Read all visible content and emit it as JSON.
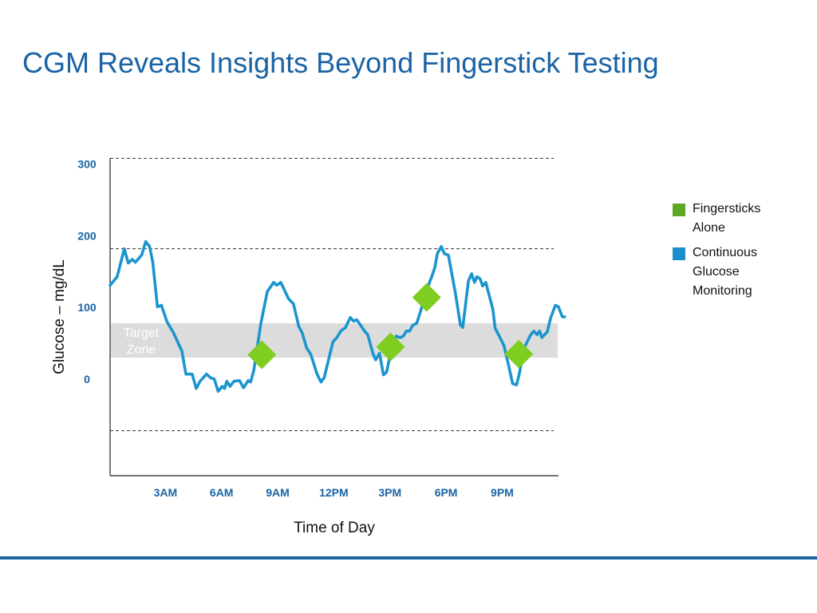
{
  "slide": {
    "title": "CGM Reveals Insights Beyond Fingerstick Testing"
  },
  "colors": {
    "title": "#1a63a5",
    "axis_tick_text": "#1a63a5",
    "cgm_line": "#1b95cf",
    "fingerstick_marker": "#7fcd21",
    "fingerstick_swatch": "#5fa823",
    "cgm_swatch": "#1b8fcb",
    "target_zone": "#dcdcdc",
    "target_zone_text": "#ffffff",
    "footer_rule": "#1a63a5"
  },
  "legend": {
    "placement": "right",
    "items": [
      {
        "label": "Fingersticks Alone",
        "color": "#5fa823"
      },
      {
        "label": "Continuous Glucose Monitoring",
        "color": "#1b8fcb"
      }
    ]
  },
  "chart_data": {
    "type": "line",
    "title": "",
    "xlabel": "Time of Day",
    "ylabel": "Glucose – mg/dL",
    "x_unit": "hours",
    "xlim": [
      0,
      24
    ],
    "ylim": [
      -135,
      305
    ],
    "y_ticks": [
      {
        "value": 300,
        "label": "300"
      },
      {
        "value": 200,
        "label": "200"
      },
      {
        "value": 100,
        "label": "100"
      },
      {
        "value": 0,
        "label": "0"
      }
    ],
    "x_ticks": [
      {
        "value": 3,
        "label": "3AM"
      },
      {
        "value": 6,
        "label": "6AM"
      },
      {
        "value": 9,
        "label": "9AM"
      },
      {
        "value": 12,
        "label": "12PM"
      },
      {
        "value": 15,
        "label": "3PM"
      },
      {
        "value": 18,
        "label": "6PM"
      },
      {
        "value": 21,
        "label": "9PM"
      }
    ],
    "gridlines": [
      308,
      182,
      -72
    ],
    "grid_style": "dashed",
    "target_zone": {
      "from": 30,
      "to": 78,
      "label_lines": [
        "Target",
        "Zone"
      ]
    },
    "series": [
      {
        "name": "Continuous Glucose Monitoring",
        "style": "line",
        "points": [
          [
            0.0,
            131
          ],
          [
            0.38,
            143
          ],
          [
            0.76,
            182
          ],
          [
            0.97,
            162
          ],
          [
            1.18,
            167
          ],
          [
            1.35,
            163
          ],
          [
            1.69,
            173
          ],
          [
            1.9,
            192
          ],
          [
            2.11,
            185
          ],
          [
            2.28,
            163
          ],
          [
            2.53,
            101
          ],
          [
            2.74,
            103
          ],
          [
            3.04,
            80
          ],
          [
            3.38,
            65
          ],
          [
            3.84,
            39
          ],
          [
            4.05,
            7
          ],
          [
            4.39,
            7
          ],
          [
            4.6,
            -13
          ],
          [
            4.81,
            -3
          ],
          [
            5.15,
            7
          ],
          [
            5.36,
            2
          ],
          [
            5.57,
            0
          ],
          [
            5.78,
            -17
          ],
          [
            5.99,
            -10
          ],
          [
            6.12,
            -13
          ],
          [
            6.24,
            -3
          ],
          [
            6.41,
            -10
          ],
          [
            6.62,
            -3
          ],
          [
            6.92,
            -2
          ],
          [
            7.13,
            -12
          ],
          [
            7.38,
            -2
          ],
          [
            7.51,
            -4
          ],
          [
            7.68,
            12
          ],
          [
            8.06,
            78
          ],
          [
            8.4,
            122
          ],
          [
            8.74,
            135
          ],
          [
            8.91,
            131
          ],
          [
            9.12,
            135
          ],
          [
            9.54,
            112
          ],
          [
            9.8,
            105
          ],
          [
            10.09,
            73
          ],
          [
            10.26,
            65
          ],
          [
            10.51,
            43
          ],
          [
            10.72,
            35
          ],
          [
            11.06,
            7
          ],
          [
            11.27,
            -4
          ],
          [
            11.44,
            2
          ],
          [
            11.91,
            52
          ],
          [
            12.12,
            58
          ],
          [
            12.33,
            67
          ],
          [
            12.58,
            72
          ],
          [
            12.84,
            86
          ],
          [
            13.01,
            81
          ],
          [
            13.18,
            83
          ],
          [
            13.39,
            75
          ],
          [
            13.6,
            67
          ],
          [
            13.77,
            62
          ],
          [
            14.06,
            35
          ],
          [
            14.19,
            27
          ],
          [
            14.4,
            36
          ],
          [
            14.61,
            6
          ],
          [
            14.78,
            10
          ],
          [
            15.08,
            48
          ],
          [
            15.29,
            60
          ],
          [
            15.5,
            58
          ],
          [
            15.67,
            60
          ],
          [
            15.84,
            67
          ],
          [
            16.01,
            67
          ],
          [
            16.17,
            75
          ],
          [
            16.39,
            78
          ],
          [
            16.6,
            95
          ],
          [
            16.81,
            117
          ],
          [
            17.19,
            143
          ],
          [
            17.36,
            156
          ],
          [
            17.49,
            175
          ],
          [
            17.7,
            185
          ],
          [
            17.87,
            175
          ],
          [
            18.08,
            173
          ],
          [
            18.46,
            119
          ],
          [
            18.72,
            76
          ],
          [
            18.85,
            72
          ],
          [
            19.15,
            137
          ],
          [
            19.32,
            147
          ],
          [
            19.48,
            135
          ],
          [
            19.61,
            143
          ],
          [
            19.78,
            140
          ],
          [
            19.91,
            130
          ],
          [
            20.08,
            135
          ],
          [
            20.46,
            97
          ],
          [
            20.58,
            71
          ],
          [
            20.84,
            58
          ],
          [
            21.05,
            47
          ],
          [
            21.3,
            19
          ],
          [
            21.51,
            -6
          ],
          [
            21.72,
            -8
          ],
          [
            21.85,
            5
          ],
          [
            22.14,
            44
          ],
          [
            22.48,
            62
          ],
          [
            22.65,
            67
          ],
          [
            22.82,
            62
          ],
          [
            22.95,
            67
          ],
          [
            23.08,
            58
          ],
          [
            23.37,
            66
          ],
          [
            23.54,
            85
          ],
          [
            23.8,
            103
          ],
          [
            23.96,
            101
          ],
          [
            24.17,
            87
          ],
          [
            24.3,
            87
          ]
        ]
      },
      {
        "name": "Fingersticks Alone",
        "style": "diamond-markers",
        "points": [
          [
            8.11,
            34
          ],
          [
            14.99,
            45
          ],
          [
            16.92,
            114
          ],
          [
            21.85,
            35
          ]
        ]
      }
    ]
  }
}
